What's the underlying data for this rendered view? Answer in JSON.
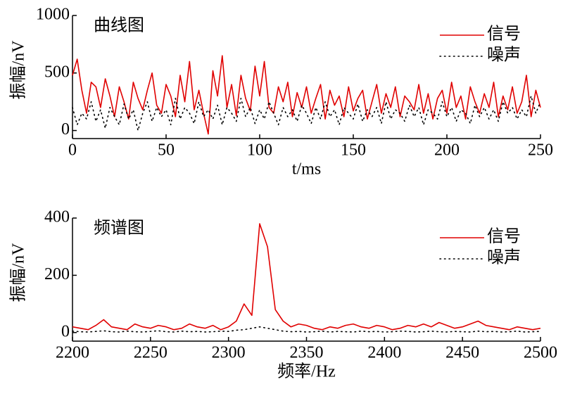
{
  "chart_data": [
    {
      "type": "line",
      "title": "曲线图",
      "x_label": "t/ms",
      "y_label": "振幅/nV",
      "x": [
        0,
        2.5,
        5,
        7.5,
        10,
        12.5,
        15,
        17.5,
        20,
        22.5,
        25,
        27.5,
        30,
        32.5,
        35,
        37.5,
        40,
        42.5,
        45,
        47.5,
        50,
        52.5,
        55,
        57.5,
        60,
        62.5,
        65,
        67.5,
        70,
        72.5,
        75,
        77.5,
        80,
        82.5,
        85,
        87.5,
        90,
        92.5,
        95,
        97.5,
        100,
        102.5,
        105,
        107.5,
        110,
        112.5,
        115,
        117.5,
        120,
        122.5,
        125,
        127.5,
        130,
        132.5,
        135,
        137.5,
        140,
        142.5,
        145,
        147.5,
        150,
        152.5,
        155,
        157.5,
        160,
        162.5,
        165,
        167.5,
        170,
        172.5,
        175,
        177.5,
        180,
        182.5,
        185,
        187.5,
        190,
        192.5,
        195,
        197.5,
        200,
        202.5,
        205,
        207.5,
        210,
        212.5,
        215,
        217.5,
        220,
        222.5,
        225,
        227.5,
        230,
        232.5,
        235,
        237.5,
        240,
        242.5,
        245,
        247.5,
        250
      ],
      "series": [
        {
          "name": "信号",
          "color": "#e00000",
          "style": "solid",
          "values": [
            480,
            620,
            350,
            150,
            420,
            380,
            200,
            450,
            300,
            120,
            380,
            250,
            100,
            420,
            280,
            180,
            350,
            500,
            220,
            150,
            400,
            300,
            120,
            480,
            250,
            600,
            180,
            350,
            150,
            -30,
            520,
            300,
            650,
            200,
            400,
            130,
            480,
            280,
            170,
            560,
            300,
            600,
            200,
            150,
            380,
            250,
            420,
            120,
            330,
            200,
            380,
            150,
            280,
            400,
            100,
            350,
            220,
            300,
            120,
            380,
            170,
            280,
            350,
            100,
            250,
            400,
            150,
            320,
            200,
            380,
            120,
            300,
            250,
            180,
            400,
            150,
            320,
            100,
            280,
            350,
            150,
            420,
            200,
            300,
            100,
            380,
            250,
            150,
            320,
            200,
            420,
            120,
            300,
            180,
            380,
            150,
            250,
            480,
            120,
            350,
            200
          ]
        },
        {
          "name": "噪声",
          "color": "#000000",
          "style": "dotted",
          "values": [
            200,
            50,
            150,
            100,
            250,
            80,
            180,
            20,
            200,
            120,
            50,
            230,
            100,
            180,
            0,
            150,
            250,
            80,
            200,
            120,
            180,
            50,
            280,
            100,
            200,
            150,
            60,
            250,
            120,
            180,
            100,
            220,
            50,
            200,
            150,
            80,
            280,
            120,
            200,
            60,
            180,
            100,
            250,
            150,
            50,
            200,
            120,
            180,
            80,
            220,
            150,
            60,
            200,
            100,
            250,
            120,
            180,
            50,
            200,
            150,
            100,
            230,
            80,
            180,
            120,
            200,
            60,
            250,
            100,
            180,
            150,
            80,
            220,
            120,
            200,
            50,
            180,
            150,
            100,
            250,
            120,
            200,
            80,
            180,
            150,
            60,
            220,
            120,
            200,
            100,
            180,
            80,
            250,
            150,
            200,
            100,
            180,
            120,
            300,
            150,
            250
          ]
        }
      ],
      "xlim": [
        0,
        250
      ],
      "xticks": [
        0,
        50,
        100,
        150,
        200,
        250
      ],
      "ylim": [
        -70,
        1000
      ],
      "yticks": [
        0,
        500,
        1000
      ],
      "legend": "upper right"
    },
    {
      "type": "line",
      "title": "频谱图",
      "x_label": "频率/Hz",
      "y_label": "振幅/nV",
      "x": [
        2200,
        2205,
        2210,
        2215,
        2220,
        2225,
        2230,
        2235,
        2240,
        2245,
        2250,
        2255,
        2260,
        2265,
        2270,
        2275,
        2280,
        2285,
        2290,
        2295,
        2300,
        2305,
        2310,
        2315,
        2320,
        2325,
        2330,
        2335,
        2340,
        2345,
        2350,
        2355,
        2360,
        2365,
        2370,
        2375,
        2380,
        2385,
        2390,
        2395,
        2400,
        2405,
        2410,
        2415,
        2420,
        2425,
        2430,
        2435,
        2440,
        2445,
        2450,
        2455,
        2460,
        2465,
        2470,
        2475,
        2480,
        2485,
        2490,
        2495,
        2500
      ],
      "series": [
        {
          "name": "信号",
          "color": "#e00000",
          "style": "solid",
          "values": [
            20,
            15,
            10,
            25,
            45,
            20,
            15,
            10,
            30,
            20,
            15,
            25,
            20,
            10,
            15,
            30,
            20,
            15,
            25,
            10,
            20,
            40,
            100,
            60,
            380,
            300,
            80,
            40,
            20,
            30,
            25,
            15,
            10,
            20,
            15,
            25,
            30,
            20,
            15,
            25,
            20,
            10,
            15,
            25,
            20,
            30,
            20,
            35,
            25,
            15,
            20,
            30,
            40,
            25,
            20,
            15,
            10,
            20,
            15,
            10,
            15
          ]
        },
        {
          "name": "噪声",
          "color": "#000000",
          "style": "dotted",
          "values": [
            5,
            3,
            2,
            4,
            6,
            3,
            2,
            5,
            3,
            2,
            4,
            6,
            3,
            2,
            5,
            3,
            4,
            2,
            3,
            5,
            4,
            8,
            10,
            15,
            20,
            15,
            10,
            5,
            3,
            4,
            2,
            3,
            5,
            2,
            4,
            3,
            2,
            5,
            3,
            4,
            2,
            3,
            5,
            4,
            2,
            3,
            5,
            3,
            2,
            4,
            3,
            2,
            5,
            3,
            4,
            2,
            3,
            5,
            2,
            3,
            4
          ]
        }
      ],
      "xlim": [
        2200,
        2500
      ],
      "xticks": [
        2200,
        2250,
        2300,
        2350,
        2400,
        2450,
        2500
      ],
      "ylim": [
        -30,
        400
      ],
      "yticks": [
        0,
        200,
        400
      ],
      "legend": "upper right"
    }
  ]
}
